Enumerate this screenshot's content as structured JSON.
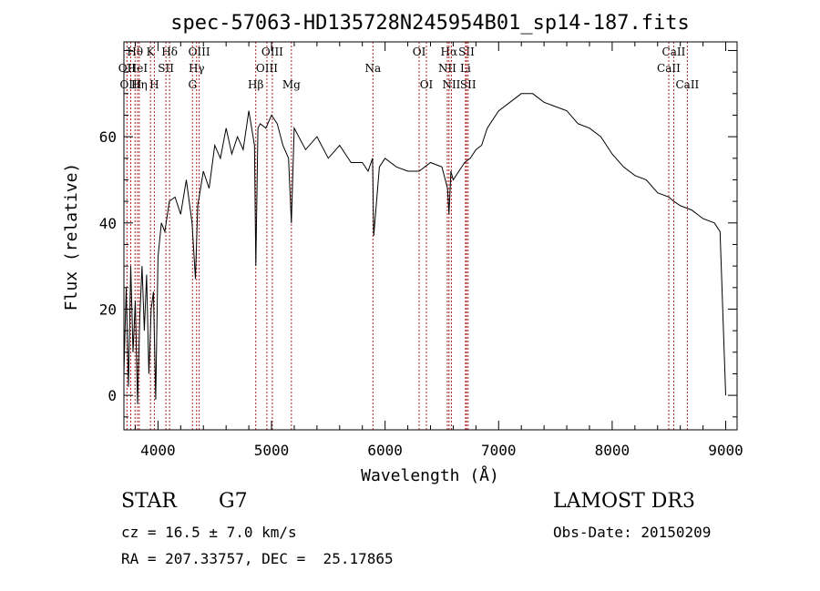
{
  "chart_data": {
    "type": "line",
    "title": "spec-57063-HD135728N245954B01_sp14-187.fits",
    "xlabel": "Wavelength (Å)",
    "ylabel": "Flux (relative)",
    "xlim": [
      3700,
      9100
    ],
    "ylim": [
      -8,
      82
    ],
    "xticks": [
      4000,
      5000,
      6000,
      7000,
      8000,
      9000
    ],
    "yticks": [
      0,
      20,
      40,
      60
    ],
    "series": [
      {
        "name": "spectrum",
        "x": [
          3700,
          3720,
          3740,
          3760,
          3780,
          3800,
          3820,
          3840,
          3860,
          3880,
          3900,
          3920,
          3940,
          3960,
          3980,
          4000,
          4030,
          4060,
          4100,
          4150,
          4200,
          4250,
          4300,
          4330,
          4350,
          4400,
          4450,
          4500,
          4550,
          4600,
          4650,
          4700,
          4750,
          4800,
          4850,
          4862,
          4880,
          4900,
          4950,
          5000,
          5050,
          5100,
          5150,
          5175,
          5200,
          5300,
          5400,
          5500,
          5600,
          5700,
          5800,
          5850,
          5890,
          5900,
          5950,
          6000,
          6100,
          6200,
          6300,
          6400,
          6500,
          6550,
          6563,
          6580,
          6600,
          6650,
          6700,
          6750,
          6800,
          6850,
          6900,
          7000,
          7100,
          7200,
          7300,
          7400,
          7500,
          7600,
          7700,
          7800,
          7900,
          8000,
          8100,
          8200,
          8300,
          8400,
          8500,
          8542,
          8600,
          8700,
          8800,
          8900,
          8950,
          9000
        ],
        "y": [
          5,
          25,
          2,
          30,
          10,
          22,
          -2,
          18,
          30,
          15,
          28,
          5,
          20,
          24,
          -1,
          32,
          40,
          38,
          45,
          46,
          42,
          50,
          40,
          27,
          44,
          52,
          48,
          58,
          55,
          62,
          56,
          60,
          57,
          66,
          58,
          30,
          62,
          63,
          62,
          65,
          63,
          58,
          55,
          40,
          62,
          57,
          60,
          55,
          58,
          54,
          54,
          52,
          55,
          37,
          53,
          55,
          53,
          52,
          52,
          54,
          53,
          48,
          42,
          52,
          50,
          52,
          54,
          55,
          57,
          58,
          62,
          66,
          68,
          70,
          70,
          68,
          67,
          66,
          63,
          62,
          60,
          56,
          53,
          51,
          50,
          47,
          46,
          45,
          44,
          43,
          41,
          40,
          38,
          0
        ]
      }
    ],
    "lines": [
      {
        "label": "Hθ",
        "x": 3798,
        "row": 1
      },
      {
        "label": "OII",
        "x": 3727,
        "row": 2
      },
      {
        "label": "OIII",
        "x": 3760,
        "row": 3
      },
      {
        "label": "HeI",
        "x": 3820,
        "row": 2
      },
      {
        "label": "Hη",
        "x": 3835,
        "row": 3
      },
      {
        "label": "K",
        "x": 3934,
        "row": 1
      },
      {
        "label": "SII",
        "x": 4070,
        "row": 2
      },
      {
        "label": "H",
        "x": 3968,
        "row": 3
      },
      {
        "label": "Hδ",
        "x": 4102,
        "row": 1
      },
      {
        "label": "OIII",
        "x": 4363,
        "row": 1
      },
      {
        "label": "Hγ",
        "x": 4340,
        "row": 2
      },
      {
        "label": "G",
        "x": 4304,
        "row": 3
      },
      {
        "label": "OIII",
        "x": 5007,
        "row": 1
      },
      {
        "label": "OIII",
        "x": 4959,
        "row": 2
      },
      {
        "label": "Hβ",
        "x": 4861,
        "row": 3
      },
      {
        "label": "Mg",
        "x": 5175,
        "row": 3
      },
      {
        "label": "Na",
        "x": 5893,
        "row": 2
      },
      {
        "label": "OI",
        "x": 6300,
        "row": 1
      },
      {
        "label": "OI",
        "x": 6364,
        "row": 3
      },
      {
        "label": "Hα",
        "x": 6563,
        "row": 1
      },
      {
        "label": "SII",
        "x": 6717,
        "row": 1
      },
      {
        "label": "NII",
        "x": 6548,
        "row": 2
      },
      {
        "label": "Li",
        "x": 6708,
        "row": 2
      },
      {
        "label": "NII",
        "x": 6584,
        "row": 3
      },
      {
        "label": "SII",
        "x": 6731,
        "row": 3
      },
      {
        "label": "CaII",
        "x": 8542,
        "row": 1
      },
      {
        "label": "CaII",
        "x": 8498,
        "row": 2
      },
      {
        "label": "CaII",
        "x": 8662,
        "row": 3
      }
    ],
    "line_color": "#b22222"
  },
  "info": {
    "object_class": "STAR",
    "subclass": "G7",
    "survey": "LAMOST DR3",
    "cz": "cz = 16.5 ± 7.0 km/s",
    "obs_date": "Obs-Date: 20150209",
    "coords": "RA = 207.33757, DEC =  25.17865"
  }
}
